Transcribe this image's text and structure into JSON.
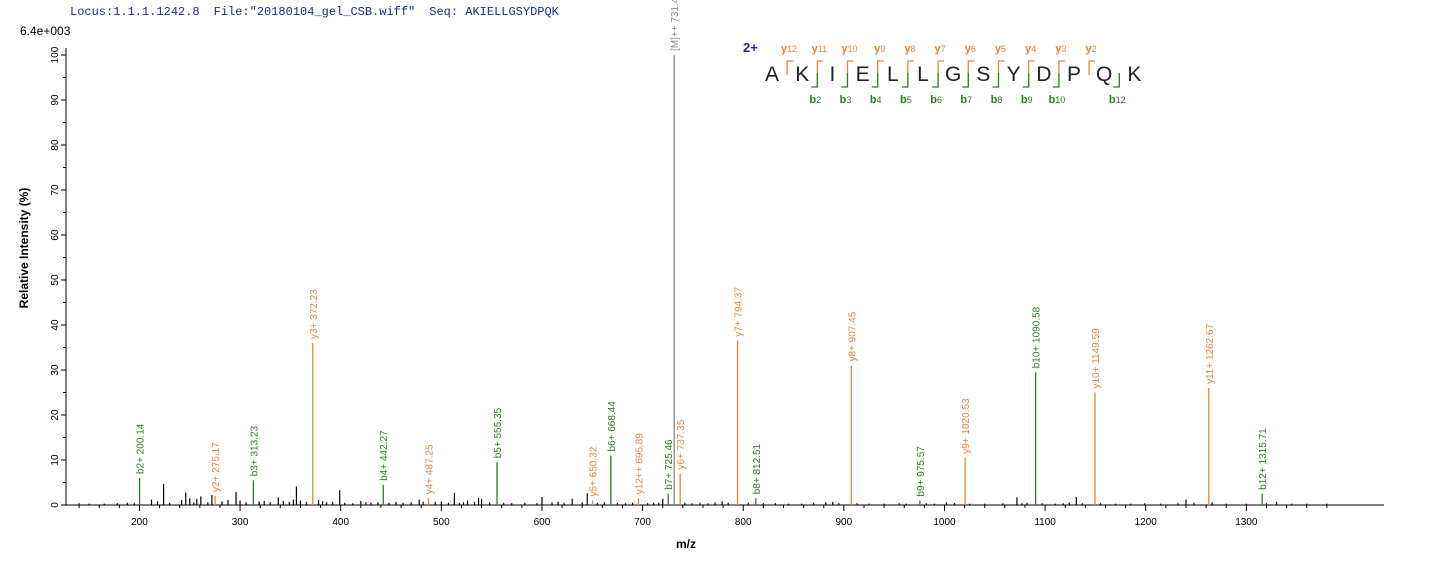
{
  "header": {
    "locus": "Locus:1.1.1.1242.8",
    "file": "File:\"20180104_gel_CSB.wiff\"",
    "seq": "Seq: AKIELLGSYDPQK"
  },
  "y_max_label": "6.4e+003",
  "colors": {
    "y_ion": "#e8843c",
    "b_ion": "#2a7d1f",
    "precursor": "#888888",
    "noise": "#000000",
    "charge": "#1a2a9c"
  },
  "chart_data": {
    "type": "bar",
    "xlabel": "m/z",
    "ylabel": "Relative   Intensity (%)",
    "xlim": [
      130,
      1400
    ],
    "ylim": [
      0,
      100
    ],
    "x_ticks": [
      200,
      300,
      400,
      500,
      600,
      700,
      800,
      900,
      1000,
      1100,
      1200,
      1300
    ],
    "y_ticks": [
      0,
      10,
      20,
      30,
      40,
      50,
      60,
      70,
      80,
      90,
      100
    ],
    "annotated_peaks": [
      {
        "mz": 200.14,
        "intensity": 6,
        "label": "b2+ 200.14",
        "type": "b"
      },
      {
        "mz": 275.17,
        "intensity": 2,
        "label": "y2+ 275.17",
        "type": "y"
      },
      {
        "mz": 313.23,
        "intensity": 5.5,
        "label": "b3+ 313.23",
        "type": "b"
      },
      {
        "mz": 372.23,
        "intensity": 36,
        "label": "y3+ 372.23",
        "type": "y"
      },
      {
        "mz": 442.27,
        "intensity": 4.5,
        "label": "b4+ 442.27",
        "type": "b"
      },
      {
        "mz": 487.25,
        "intensity": 1.5,
        "label": "y4+ 487.25",
        "type": "y"
      },
      {
        "mz": 555.35,
        "intensity": 9.5,
        "label": "b5+ 555.35",
        "type": "b"
      },
      {
        "mz": 650.32,
        "intensity": 1,
        "label": "y5+ 650.32",
        "type": "y"
      },
      {
        "mz": 668.44,
        "intensity": 11,
        "label": "b6+ 668.44",
        "type": "b"
      },
      {
        "mz": 695.89,
        "intensity": 1.5,
        "label": "y12++ 695.89",
        "type": "y"
      },
      {
        "mz": 725.46,
        "intensity": 2.5,
        "label": "b7+ 725.46",
        "type": "b"
      },
      {
        "mz": 731.41,
        "intensity": 100,
        "label": "[M]++ 731.41",
        "type": "precursor"
      },
      {
        "mz": 737.35,
        "intensity": 7,
        "label": "y6+ 737.35",
        "type": "y"
      },
      {
        "mz": 794.37,
        "intensity": 36.5,
        "label": "y7+ 794.37",
        "type": "y"
      },
      {
        "mz": 812.51,
        "intensity": 1.5,
        "label": "b8+ 812.51",
        "type": "b"
      },
      {
        "mz": 907.45,
        "intensity": 31,
        "label": "y8+ 907.45",
        "type": "y"
      },
      {
        "mz": 975.57,
        "intensity": 1,
        "label": "b9+ 975.57",
        "type": "b"
      },
      {
        "mz": 1020.53,
        "intensity": 10.5,
        "label": "y9+ 1020.53",
        "type": "y"
      },
      {
        "mz": 1090.58,
        "intensity": 29.5,
        "label": "b10+ 1090.58",
        "type": "b"
      },
      {
        "mz": 1149.59,
        "intensity": 25,
        "label": "y10+ 1149.59",
        "type": "y"
      },
      {
        "mz": 1262.67,
        "intensity": 26,
        "label": "y11+ 1262.67",
        "type": "y"
      },
      {
        "mz": 1315.71,
        "intensity": 2.5,
        "label": "b12+ 1315.71",
        "type": "b"
      }
    ],
    "noise_peaks": [
      [
        140,
        0.4
      ],
      [
        150,
        0.3
      ],
      [
        165,
        0.3
      ],
      [
        178,
        0.4
      ],
      [
        188,
        0.5
      ],
      [
        195,
        0.4
      ],
      [
        212,
        1.2
      ],
      [
        218,
        0.8
      ],
      [
        224,
        4.7
      ],
      [
        230,
        0.5
      ],
      [
        242,
        1.1
      ],
      [
        246,
        2.8
      ],
      [
        250,
        1.5
      ],
      [
        254,
        0.6
      ],
      [
        257,
        1.4
      ],
      [
        261,
        1.9
      ],
      [
        268,
        0.6
      ],
      [
        272,
        2.2
      ],
      [
        282,
        0.8
      ],
      [
        288,
        1.1
      ],
      [
        296,
        2.9
      ],
      [
        300,
        1.0
      ],
      [
        306,
        0.6
      ],
      [
        319,
        0.8
      ],
      [
        324,
        0.9
      ],
      [
        330,
        0.6
      ],
      [
        338,
        1.7
      ],
      [
        343,
        0.9
      ],
      [
        349,
        0.7
      ],
      [
        353,
        1.2
      ],
      [
        356,
        4.1
      ],
      [
        360,
        1.0
      ],
      [
        366,
        0.7
      ],
      [
        378,
        1.1
      ],
      [
        382,
        0.8
      ],
      [
        386,
        0.6
      ],
      [
        392,
        0.7
      ],
      [
        399,
        3.3
      ],
      [
        404,
        0.5
      ],
      [
        412,
        0.4
      ],
      [
        420,
        0.9
      ],
      [
        425,
        0.6
      ],
      [
        430,
        0.5
      ],
      [
        437,
        0.6
      ],
      [
        448,
        0.5
      ],
      [
        455,
        0.7
      ],
      [
        462,
        0.5
      ],
      [
        470,
        0.6
      ],
      [
        478,
        1.2
      ],
      [
        482,
        0.7
      ],
      [
        494,
        0.7
      ],
      [
        500,
        0.8
      ],
      [
        507,
        0.5
      ],
      [
        513,
        2.7
      ],
      [
        518,
        0.5
      ],
      [
        522,
        0.6
      ],
      [
        526,
        1.0
      ],
      [
        533,
        0.7
      ],
      [
        537,
        1.6
      ],
      [
        540,
        1.3
      ],
      [
        548,
        0.6
      ],
      [
        562,
        0.5
      ],
      [
        570,
        0.4
      ],
      [
        583,
        0.5
      ],
      [
        595,
        0.4
      ],
      [
        600,
        1.8
      ],
      [
        610,
        0.6
      ],
      [
        616,
        0.7
      ],
      [
        622,
        0.5
      ],
      [
        630,
        1.4
      ],
      [
        640,
        0.6
      ],
      [
        645,
        2.6
      ],
      [
        655,
        0.5
      ],
      [
        662,
        0.6
      ],
      [
        675,
        0.5
      ],
      [
        683,
        0.4
      ],
      [
        690,
        0.5
      ],
      [
        705,
        0.4
      ],
      [
        711,
        0.5
      ],
      [
        716,
        0.5
      ],
      [
        720,
        1.4
      ],
      [
        742,
        0.5
      ],
      [
        749,
        0.4
      ],
      [
        757,
        0.5
      ],
      [
        765,
        0.4
      ],
      [
        772,
        0.6
      ],
      [
        779,
        0.8
      ],
      [
        785,
        0.5
      ],
      [
        805,
        0.5
      ],
      [
        820,
        0.4
      ],
      [
        832,
        0.4
      ],
      [
        845,
        0.3
      ],
      [
        858,
        0.3
      ],
      [
        870,
        0.5
      ],
      [
        882,
        0.6
      ],
      [
        889,
        0.7
      ],
      [
        895,
        0.4
      ],
      [
        913,
        0.4
      ],
      [
        925,
        0.3
      ],
      [
        940,
        0.3
      ],
      [
        955,
        0.4
      ],
      [
        962,
        0.3
      ],
      [
        982,
        0.4
      ],
      [
        990,
        0.3
      ],
      [
        1002,
        0.6
      ],
      [
        1010,
        0.4
      ],
      [
        1025,
        0.3
      ],
      [
        1040,
        0.3
      ],
      [
        1058,
        0.4
      ],
      [
        1072,
        1.7
      ],
      [
        1077,
        0.4
      ],
      [
        1082,
        0.5
      ],
      [
        1097,
        0.4
      ],
      [
        1110,
        0.3
      ],
      [
        1118,
        0.4
      ],
      [
        1124,
        0.5
      ],
      [
        1131,
        1.8
      ],
      [
        1137,
        0.4
      ],
      [
        1155,
        0.4
      ],
      [
        1170,
        0.3
      ],
      [
        1185,
        0.3
      ],
      [
        1199,
        0.4
      ],
      [
        1215,
        0.3
      ],
      [
        1232,
        0.4
      ],
      [
        1240,
        1.2
      ],
      [
        1248,
        0.5
      ],
      [
        1266,
        0.6
      ],
      [
        1280,
        0.3
      ],
      [
        1300,
        0.3
      ],
      [
        1320,
        0.4
      ],
      [
        1330,
        0.7
      ],
      [
        1345,
        0.3
      ],
      [
        1360,
        0.3
      ],
      [
        1380,
        0.3
      ]
    ]
  },
  "sequence": {
    "charge": "2+",
    "letters": [
      "A",
      "K",
      "I",
      "E",
      "L",
      "L",
      "G",
      "S",
      "Y",
      "D",
      "P",
      "Q",
      "K"
    ],
    "y_ions": [
      {
        "name": "y",
        "num": "12",
        "after": 0
      },
      {
        "name": "y",
        "num": "11",
        "after": 1
      },
      {
        "name": "y",
        "num": "10",
        "after": 2
      },
      {
        "name": "y",
        "num": "9",
        "after": 3
      },
      {
        "name": "y",
        "num": "8",
        "after": 4
      },
      {
        "name": "y",
        "num": "7",
        "after": 5
      },
      {
        "name": "y",
        "num": "6",
        "after": 6
      },
      {
        "name": "y",
        "num": "5",
        "after": 7
      },
      {
        "name": "y",
        "num": "4",
        "after": 8
      },
      {
        "name": "y",
        "num": "3",
        "after": 9
      },
      {
        "name": "y",
        "num": "2",
        "after": 10
      }
    ],
    "b_ions": [
      {
        "name": "b",
        "num": "2",
        "after": 1
      },
      {
        "name": "b",
        "num": "3",
        "after": 2
      },
      {
        "name": "b",
        "num": "4",
        "after": 3
      },
      {
        "name": "b",
        "num": "5",
        "after": 4
      },
      {
        "name": "b",
        "num": "6",
        "after": 5
      },
      {
        "name": "b",
        "num": "7",
        "after": 6
      },
      {
        "name": "b",
        "num": "8",
        "after": 7
      },
      {
        "name": "b",
        "num": "9",
        "after": 8
      },
      {
        "name": "b",
        "num": "10",
        "after": 9
      },
      {
        "name": "b",
        "num": "12",
        "after": 11
      }
    ]
  }
}
